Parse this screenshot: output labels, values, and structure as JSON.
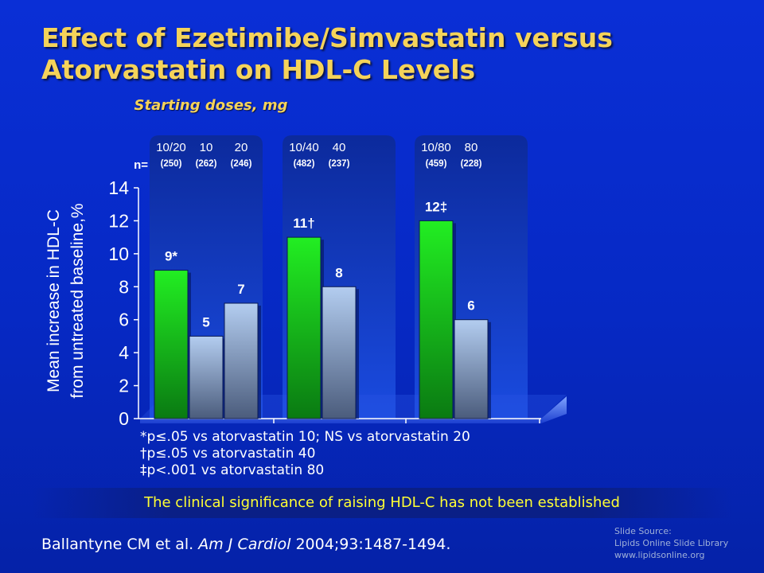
{
  "title": {
    "line1": "Effect of Ezetimibe/Simvastatin versus",
    "line2": "Atorvastatin on HDL-C Levels"
  },
  "starting_doses_label": "Starting doses, mg",
  "n_label": "n=",
  "chart_data": {
    "type": "bar",
    "ylabel": "Mean increase in HDL-C from untreated baseline,%",
    "ylim": [
      0,
      14
    ],
    "yticks": [
      0,
      2,
      4,
      6,
      8,
      10,
      12,
      14
    ],
    "grid": false,
    "groups": [
      {
        "bars": [
          {
            "dose": "10/20",
            "n": "(250)",
            "value": 9,
            "label": "9*",
            "drug": "ezetimibe/simvastatin"
          },
          {
            "dose": "10",
            "n": "(262)",
            "value": 5,
            "label": "5",
            "drug": "atorvastatin"
          },
          {
            "dose": "20",
            "n": "(246)",
            "value": 7,
            "label": "7",
            "drug": "atorvastatin"
          }
        ]
      },
      {
        "bars": [
          {
            "dose": "10/40",
            "n": "(482)",
            "value": 11,
            "label": "11†",
            "drug": "ezetimibe/simvastatin"
          },
          {
            "dose": "40",
            "n": "(237)",
            "value": 8,
            "label": "8",
            "drug": "atorvastatin"
          }
        ]
      },
      {
        "bars": [
          {
            "dose": "10/80",
            "n": "(459)",
            "value": 12,
            "label": "12‡",
            "drug": "ezetimibe/simvastatin"
          },
          {
            "dose": "80",
            "n": "(228)",
            "value": 6,
            "label": "6",
            "drug": "atorvastatin"
          }
        ]
      }
    ]
  },
  "footnotes": [
    "*p≤.05 vs atorvastatin 10; NS vs atorvastatin 20",
    "†p≤.05 vs atorvastatin 40",
    "‡p<.001 vs atorvastatin 80"
  ],
  "banner": "The clinical significance of raising HDL-C has not been established",
  "citation": {
    "authors": "Ballantyne CM et al. ",
    "journal": "Am J Cardiol",
    "details": " 2004;93:1487-1494."
  },
  "source": [
    "Slide Source:",
    "Lipids Online Slide Library",
    "www.lipidsonline.org"
  ],
  "colors": {
    "background": "#0629c4",
    "title": "#f5d35a",
    "ezetimibe_bar": "#1ee01e",
    "atorvastatin_bar": "#a9c4e8",
    "banner_text": "#ffff33"
  }
}
